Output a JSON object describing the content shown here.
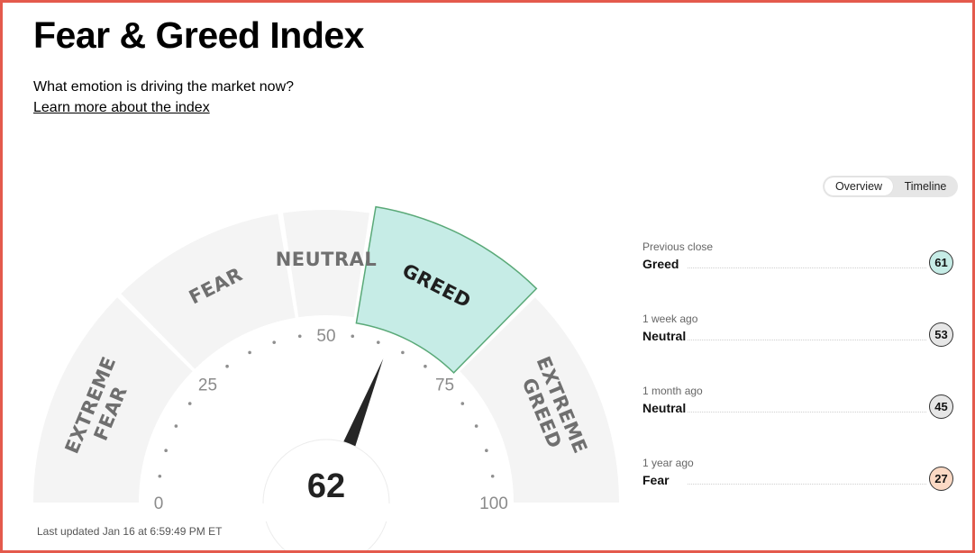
{
  "page": {
    "title": "Fear & Greed Index",
    "subtitle": "What emotion is driving the market now?",
    "learn_more": "Learn more about the index"
  },
  "toggle": {
    "overview": "Overview",
    "timeline": "Timeline",
    "selected": "Overview"
  },
  "gauge": {
    "score": 62,
    "score_text": "62",
    "active_zone": "GREED",
    "zones": [
      {
        "line1": "EXTREME",
        "line2": "FEAR"
      },
      {
        "line1": "FEAR",
        "line2": ""
      },
      {
        "line1": "NEUTRAL",
        "line2": ""
      },
      {
        "line1": "GREED",
        "line2": ""
      },
      {
        "line1": "EXTREME",
        "line2": "GREED"
      }
    ],
    "scale_labels": [
      "0",
      "25",
      "50",
      "75",
      "100"
    ],
    "active_color": "#c6ece6",
    "active_border": "#5aa978",
    "zone_color": "#f4f4f4"
  },
  "last_updated": "Last updated Jan 16 at 6:59:49 PM ET",
  "history": [
    {
      "period": "Previous close",
      "rating": "Greed",
      "value": "61",
      "color": "#c6ece6"
    },
    {
      "period": "1 week ago",
      "rating": "Neutral",
      "value": "53",
      "color": "#e6e6e6"
    },
    {
      "period": "1 month ago",
      "rating": "Neutral",
      "value": "45",
      "color": "#e6e6e6"
    },
    {
      "period": "1 year ago",
      "rating": "Fear",
      "value": "27",
      "color": "#fbd9c4"
    }
  ]
}
